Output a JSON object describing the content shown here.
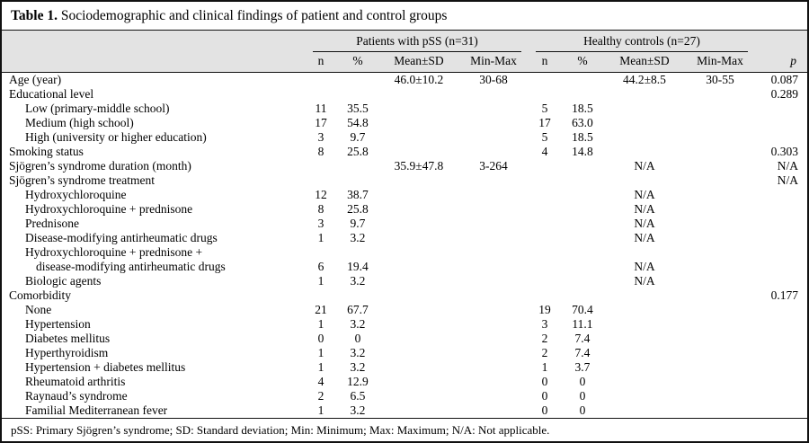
{
  "title": {
    "label": "Table 1.",
    "text": "Sociodemographic and clinical findings of patient and control groups"
  },
  "table": {
    "groups": [
      {
        "label": "Patients with pSS (n=31)"
      },
      {
        "label": "Healthy controls (n=27)"
      }
    ],
    "subheaders": [
      "n",
      "%",
      "Mean±SD",
      "Min-Max",
      "n",
      "%",
      "Mean±SD",
      "Min-Max"
    ],
    "p_header": "p",
    "rows": [
      {
        "label": "Age (year)",
        "indent": 0,
        "cells": [
          "",
          "",
          "46.0±10.2",
          "30-68",
          "",
          "",
          "44.2±8.5",
          "30-55",
          "0.087"
        ]
      },
      {
        "label": "Educational level",
        "indent": 0,
        "cells": [
          "",
          "",
          "",
          "",
          "",
          "",
          "",
          "",
          "0.289"
        ]
      },
      {
        "label": "Low (primary-middle school)",
        "indent": 1,
        "cells": [
          "11",
          "35.5",
          "",
          "",
          "5",
          "18.5",
          "",
          "",
          ""
        ]
      },
      {
        "label": "Medium (high school)",
        "indent": 1,
        "cells": [
          "17",
          "54.8",
          "",
          "",
          "17",
          "63.0",
          "",
          "",
          ""
        ]
      },
      {
        "label": "High (university or higher education)",
        "indent": 1,
        "cells": [
          "3",
          "9.7",
          "",
          "",
          "5",
          "18.5",
          "",
          "",
          ""
        ]
      },
      {
        "label": "Smoking status",
        "indent": 0,
        "cells": [
          "8",
          "25.8",
          "",
          "",
          "4",
          "14.8",
          "",
          "",
          "0.303"
        ]
      },
      {
        "label": "Sjögren’s syndrome duration (month)",
        "indent": 0,
        "cells": [
          "",
          "",
          "35.9±47.8",
          "3-264",
          "",
          "",
          "N/A",
          "",
          "N/A"
        ]
      },
      {
        "label": "Sjögren’s syndrome treatment",
        "indent": 0,
        "cells": [
          "",
          "",
          "",
          "",
          "",
          "",
          "",
          "",
          "N/A"
        ]
      },
      {
        "label": "Hydroxychloroquine",
        "indent": 1,
        "cells": [
          "12",
          "38.7",
          "",
          "",
          "",
          "",
          "N/A",
          "",
          ""
        ]
      },
      {
        "label": "Hydroxychloroquine + prednisone",
        "indent": 1,
        "cells": [
          "8",
          "25.8",
          "",
          "",
          "",
          "",
          "N/A",
          "",
          ""
        ]
      },
      {
        "label": "Prednisone",
        "indent": 1,
        "cells": [
          "3",
          "9.7",
          "",
          "",
          "",
          "",
          "N/A",
          "",
          ""
        ]
      },
      {
        "label": "Disease-modifying antirheumatic drugs",
        "indent": 1,
        "cells": [
          "1",
          "3.2",
          "",
          "",
          "",
          "",
          "N/A",
          "",
          ""
        ]
      },
      {
        "label": "Hydroxychloroquine + prednisone +",
        "indent": 1,
        "cells": [
          "",
          "",
          "",
          "",
          "",
          "",
          "",
          "",
          ""
        ]
      },
      {
        "label": "disease-modifying antirheumatic drugs",
        "indent": 2,
        "cells": [
          "6",
          "19.4",
          "",
          "",
          "",
          "",
          "N/A",
          "",
          ""
        ]
      },
      {
        "label": "Biologic agents",
        "indent": 1,
        "cells": [
          "1",
          "3.2",
          "",
          "",
          "",
          "",
          "N/A",
          "",
          ""
        ]
      },
      {
        "label": "Comorbidity",
        "indent": 0,
        "cells": [
          "",
          "",
          "",
          "",
          "",
          "",
          "",
          "",
          "0.177"
        ]
      },
      {
        "label": "None",
        "indent": 1,
        "cells": [
          "21",
          "67.7",
          "",
          "",
          "19",
          "70.4",
          "",
          "",
          ""
        ]
      },
      {
        "label": "Hypertension",
        "indent": 1,
        "cells": [
          "1",
          "3.2",
          "",
          "",
          "3",
          "11.1",
          "",
          "",
          ""
        ]
      },
      {
        "label": "Diabetes mellitus",
        "indent": 1,
        "cells": [
          "0",
          "0",
          "",
          "",
          "2",
          "7.4",
          "",
          "",
          ""
        ]
      },
      {
        "label": "Hyperthyroidism",
        "indent": 1,
        "cells": [
          "1",
          "3.2",
          "",
          "",
          "2",
          "7.4",
          "",
          "",
          ""
        ]
      },
      {
        "label": "Hypertension + diabetes mellitus",
        "indent": 1,
        "cells": [
          "1",
          "3.2",
          "",
          "",
          "1",
          "3.7",
          "",
          "",
          ""
        ]
      },
      {
        "label": "Rheumatoid arthritis",
        "indent": 1,
        "cells": [
          "4",
          "12.9",
          "",
          "",
          "0",
          "0",
          "",
          "",
          ""
        ]
      },
      {
        "label": "Raynaud’s syndrome",
        "indent": 1,
        "cells": [
          "2",
          "6.5",
          "",
          "",
          "0",
          "0",
          "",
          "",
          ""
        ]
      },
      {
        "label": "Familial Mediterranean fever",
        "indent": 1,
        "cells": [
          "1",
          "3.2",
          "",
          "",
          "0",
          "0",
          "",
          "",
          ""
        ]
      }
    ]
  },
  "footnote": "pSS: Primary Sjögren’s syndrome; SD: Standard deviation; Min: Minimum; Max: Maximum; N/A: Not applicable.",
  "colors": {
    "header_bg": "#e3e3e3",
    "border": "#111111",
    "text": "#000000"
  }
}
